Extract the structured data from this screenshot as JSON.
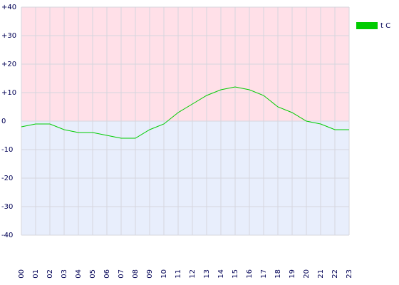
{
  "chart_data": {
    "type": "line",
    "categories": [
      "00",
      "01",
      "02",
      "03",
      "04",
      "05",
      "06",
      "07",
      "08",
      "09",
      "10",
      "11",
      "12",
      "13",
      "14",
      "15",
      "16",
      "17",
      "18",
      "19",
      "20",
      "21",
      "22",
      "23"
    ],
    "series": [
      {
        "name": "t C",
        "color": "#00cc00",
        "values": [
          -2,
          -1,
          -1,
          -3,
          -4,
          -4,
          -5,
          -6,
          -6,
          -3,
          -1,
          3,
          6,
          9,
          11,
          12,
          11,
          9,
          5,
          3,
          0,
          -1,
          -3,
          -3
        ]
      }
    ],
    "ylim": [
      -40,
      40
    ],
    "yticks": [
      {
        "value": 40,
        "label": "+40"
      },
      {
        "value": 30,
        "label": "+30"
      },
      {
        "value": 20,
        "label": "+20"
      },
      {
        "value": 10,
        "label": "+10"
      },
      0,
      -10,
      -20,
      -30,
      -40
    ],
    "grid": true,
    "legend": "top-right"
  }
}
